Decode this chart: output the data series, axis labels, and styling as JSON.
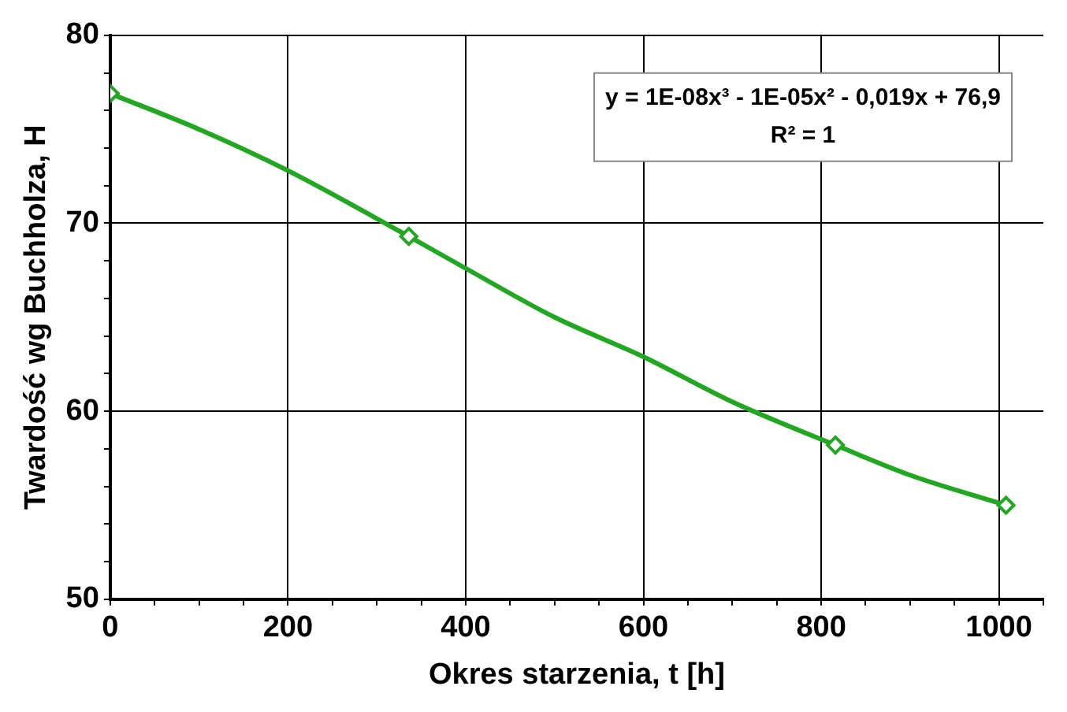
{
  "chart_data": {
    "type": "scatter",
    "xlabel": "Okres starzenia, t [h]",
    "ylabel": "Twardość wg Buchholza, H",
    "series": [
      {
        "type": "scatter",
        "color": "#22a722",
        "x": [
          0,
          336,
          816,
          1008
        ],
        "values": [
          76.9,
          69.3,
          58.2,
          55.0
        ],
        "marker": "diamond"
      },
      {
        "type": "line",
        "color": "#22a722",
        "x": [
          0,
          100,
          200,
          336,
          400,
          500,
          600,
          700,
          816,
          900,
          1008
        ],
        "values": [
          76.9,
          75.0,
          72.8,
          69.3,
          67.6,
          65.0,
          62.9,
          60.5,
          58.2,
          56.6,
          55.0
        ],
        "marker": "none"
      }
    ],
    "xlim": [
      0,
      1050
    ],
    "xticks": [
      0,
      {
        "value": 50,
        "label": null
      },
      200,
      {
        "value": 100,
        "label": null
      },
      {
        "value": 150,
        "label": null
      },
      {
        "value": 250,
        "label": null
      },
      {
        "value": 300,
        "label": null
      },
      {
        "value": 350,
        "label": null
      },
      400,
      {
        "value": 450,
        "label": null
      },
      {
        "value": 500,
        "label": null
      },
      {
        "value": 550,
        "label": null
      },
      600,
      {
        "value": 650,
        "label": null
      },
      {
        "value": 700,
        "label": null
      },
      {
        "value": 750,
        "label": null
      },
      800,
      {
        "value": 850,
        "label": null
      },
      {
        "value": 900,
        "label": null
      },
      {
        "value": 950,
        "label": null
      },
      1000,
      {
        "value": 1050,
        "label": null
      }
    ],
    "ylim": [
      50,
      80
    ],
    "yticks": [
      50,
      {
        "value": 52,
        "label": null
      },
      {
        "value": 54,
        "label": null
      },
      {
        "value": 56,
        "label": null
      },
      {
        "value": 58,
        "label": null
      },
      60,
      {
        "value": 62,
        "label": null
      },
      {
        "value": 64,
        "label": null
      },
      {
        "value": 66,
        "label": null
      },
      {
        "value": 68,
        "label": null
      },
      70,
      {
        "value": 72,
        "label": null
      },
      {
        "value": 74,
        "label": null
      },
      {
        "value": 76,
        "label": null
      },
      {
        "value": 78,
        "label": null
      },
      80
    ],
    "grid": true,
    "annotations": [
      "y = 1E-08x³ - 1E-05x² - 0,019x + 76,9",
      "R² = 1"
    ]
  }
}
